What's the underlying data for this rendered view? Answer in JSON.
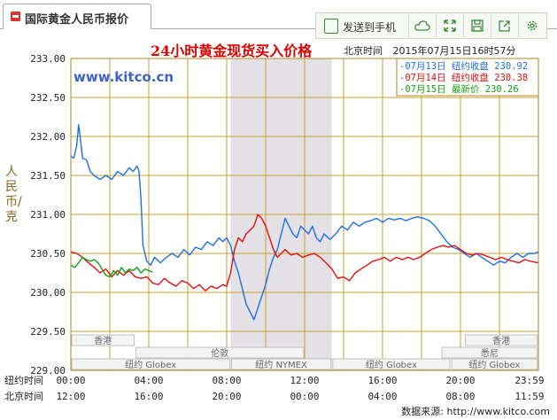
{
  "tab": {
    "title": "国际黄金人民币报价"
  },
  "toolbar": {
    "send_label": "发送到手机",
    "items": [
      "send-to-phone",
      "cloud",
      "expand",
      "save",
      "share",
      "settings"
    ]
  },
  "chart_data": {
    "type": "line",
    "title": "24小时黄金现货买入价格",
    "timezone_label": "北京时间",
    "datetime_label": "2015年07月15日16时57分",
    "watermark": "www.kitco.cn",
    "ylabel": "人民币/克",
    "ylim": [
      229.0,
      233.0
    ],
    "yticks": [
      "233.00",
      "232.50",
      "232.00",
      "231.50",
      "231.00",
      "230.50",
      "230.00",
      "229.50",
      "229.00"
    ],
    "x_row_labels": [
      "纽约时间",
      "北京时间"
    ],
    "xticks_ny": [
      "00:00",
      "04:00",
      "08:00",
      "12:00",
      "16:00",
      "20:00",
      "23:59"
    ],
    "xticks_bj": [
      "12:00",
      "16:00",
      "20:00",
      "00:00",
      "04:00",
      "08:00",
      "11:59"
    ],
    "legend": [
      {
        "date": "07月13日",
        "label": "纽约收盘",
        "value": "230.92",
        "color": "#1e6fe0"
      },
      {
        "date": "07月14日",
        "label": "纽约收盘",
        "value": "230.38",
        "color": "#e01010"
      },
      {
        "date": "07月15日",
        "label": "最新价",
        "value": "230.26",
        "color": "#10a010"
      }
    ],
    "sessions": [
      {
        "name": "香港",
        "row": 0,
        "start_h": 0,
        "end_h": 3.3
      },
      {
        "name": "香港",
        "row": 0,
        "start_h": 20.2,
        "end_h": 23.99
      },
      {
        "name": "伦敦",
        "row": 1,
        "start_h": 3.3,
        "end_h": 12
      },
      {
        "name": "悉尼",
        "row": 1,
        "start_h": 19,
        "end_h": 23.99
      },
      {
        "name": "纽约 Globex",
        "row": 2,
        "start_h": 0,
        "end_h": 8.2
      },
      {
        "name": "纽约 NYMEX",
        "row": 2,
        "start_h": 8.2,
        "end_h": 13.4
      },
      {
        "name": "纽约 Globex",
        "row": 2,
        "start_h": 13.4,
        "end_h": 19.5
      },
      {
        "name": "纽约 Globex",
        "row": 2,
        "start_h": 19.5,
        "end_h": 23.99
      }
    ],
    "shaded_range_h": [
      8.2,
      13.4
    ],
    "series": [
      {
        "name": "07月13日",
        "color": "#1e6fe0",
        "points": [
          [
            0,
            231.75
          ],
          [
            0.15,
            231.72
          ],
          [
            0.3,
            231.88
          ],
          [
            0.4,
            232.15
          ],
          [
            0.5,
            231.95
          ],
          [
            0.6,
            231.72
          ],
          [
            0.8,
            231.7
          ],
          [
            1.0,
            231.55
          ],
          [
            1.2,
            231.5
          ],
          [
            1.5,
            231.45
          ],
          [
            1.8,
            231.5
          ],
          [
            2.1,
            231.45
          ],
          [
            2.4,
            231.55
          ],
          [
            2.7,
            231.5
          ],
          [
            3.0,
            231.6
          ],
          [
            3.2,
            231.55
          ],
          [
            3.4,
            231.62
          ],
          [
            3.5,
            231.55
          ],
          [
            3.6,
            231.2
          ],
          [
            3.7,
            230.6
          ],
          [
            3.9,
            230.4
          ],
          [
            4.1,
            230.35
          ],
          [
            4.3,
            230.45
          ],
          [
            4.6,
            230.38
          ],
          [
            4.9,
            230.45
          ],
          [
            5.2,
            230.5
          ],
          [
            5.5,
            230.45
          ],
          [
            5.8,
            230.55
          ],
          [
            6.1,
            230.48
          ],
          [
            6.4,
            230.58
          ],
          [
            6.7,
            230.55
          ],
          [
            7.0,
            230.65
          ],
          [
            7.3,
            230.6
          ],
          [
            7.6,
            230.7
          ],
          [
            7.8,
            230.65
          ],
          [
            8.0,
            230.7
          ],
          [
            8.2,
            230.6
          ],
          [
            8.4,
            230.4
          ],
          [
            8.6,
            230.25
          ],
          [
            8.8,
            230.05
          ],
          [
            9.0,
            229.85
          ],
          [
            9.2,
            229.75
          ],
          [
            9.4,
            229.65
          ],
          [
            9.6,
            229.8
          ],
          [
            9.8,
            229.95
          ],
          [
            10.0,
            230.1
          ],
          [
            10.2,
            230.3
          ],
          [
            10.4,
            230.45
          ],
          [
            10.6,
            230.55
          ],
          [
            10.8,
            230.75
          ],
          [
            11.0,
            230.95
          ],
          [
            11.2,
            230.85
          ],
          [
            11.4,
            230.75
          ],
          [
            11.6,
            230.7
          ],
          [
            11.8,
            230.85
          ],
          [
            12.0,
            230.8
          ],
          [
            12.2,
            230.75
          ],
          [
            12.4,
            230.85
          ],
          [
            12.6,
            230.7
          ],
          [
            12.8,
            230.65
          ],
          [
            13.0,
            230.75
          ],
          [
            13.3,
            230.68
          ],
          [
            13.6,
            230.75
          ],
          [
            13.9,
            230.85
          ],
          [
            14.2,
            230.8
          ],
          [
            14.5,
            230.9
          ],
          [
            14.8,
            230.85
          ],
          [
            15.1,
            230.9
          ],
          [
            15.4,
            230.92
          ],
          [
            15.7,
            230.95
          ],
          [
            16.0,
            230.9
          ],
          [
            16.3,
            230.95
          ],
          [
            16.6,
            230.93
          ],
          [
            16.9,
            230.95
          ],
          [
            17.2,
            230.92
          ],
          [
            17.5,
            230.95
          ],
          [
            17.8,
            230.97
          ],
          [
            18.1,
            230.95
          ],
          [
            18.4,
            230.92
          ],
          [
            18.7,
            230.85
          ],
          [
            19.0,
            230.75
          ],
          [
            19.3,
            230.65
          ],
          [
            19.6,
            230.58
          ],
          [
            19.9,
            230.55
          ],
          [
            20.2,
            230.5
          ],
          [
            20.5,
            230.45
          ],
          [
            20.8,
            230.5
          ],
          [
            21.1,
            230.45
          ],
          [
            21.4,
            230.4
          ],
          [
            21.7,
            230.35
          ],
          [
            22.0,
            230.4
          ],
          [
            22.3,
            230.38
          ],
          [
            22.6,
            230.45
          ],
          [
            22.9,
            230.5
          ],
          [
            23.2,
            230.45
          ],
          [
            23.5,
            230.5
          ],
          [
            23.8,
            230.5
          ],
          [
            23.99,
            230.52
          ]
        ]
      },
      {
        "name": "07月14日",
        "color": "#e01010",
        "points": [
          [
            0,
            230.52
          ],
          [
            0.3,
            230.5
          ],
          [
            0.6,
            230.45
          ],
          [
            0.9,
            230.38
          ],
          [
            1.2,
            230.32
          ],
          [
            1.5,
            230.25
          ],
          [
            1.8,
            230.3
          ],
          [
            2.1,
            230.2
          ],
          [
            2.4,
            230.28
          ],
          [
            2.7,
            230.22
          ],
          [
            3.0,
            230.28
          ],
          [
            3.3,
            230.2
          ],
          [
            3.6,
            230.18
          ],
          [
            3.9,
            230.2
          ],
          [
            4.2,
            230.12
          ],
          [
            4.5,
            230.1
          ],
          [
            4.8,
            230.18
          ],
          [
            5.1,
            230.12
          ],
          [
            5.4,
            230.08
          ],
          [
            5.7,
            230.15
          ],
          [
            6.0,
            230.12
          ],
          [
            6.3,
            230.05
          ],
          [
            6.6,
            230.1
          ],
          [
            6.9,
            230.02
          ],
          [
            7.2,
            230.08
          ],
          [
            7.5,
            230.05
          ],
          [
            7.8,
            230.1
          ],
          [
            8.0,
            230.08
          ],
          [
            8.2,
            230.25
          ],
          [
            8.4,
            230.55
          ],
          [
            8.6,
            230.7
          ],
          [
            8.8,
            230.65
          ],
          [
            9.0,
            230.75
          ],
          [
            9.2,
            230.8
          ],
          [
            9.4,
            230.85
          ],
          [
            9.6,
            231.0
          ],
          [
            9.8,
            230.95
          ],
          [
            10.0,
            230.85
          ],
          [
            10.2,
            230.7
          ],
          [
            10.4,
            230.55
          ],
          [
            10.6,
            230.45
          ],
          [
            10.8,
            230.5
          ],
          [
            11.0,
            230.55
          ],
          [
            11.3,
            230.48
          ],
          [
            11.6,
            230.5
          ],
          [
            11.9,
            230.45
          ],
          [
            12.2,
            230.48
          ],
          [
            12.5,
            230.5
          ],
          [
            12.8,
            230.45
          ],
          [
            13.1,
            230.38
          ],
          [
            13.4,
            230.3
          ],
          [
            13.7,
            230.18
          ],
          [
            14.0,
            230.2
          ],
          [
            14.3,
            230.15
          ],
          [
            14.6,
            230.25
          ],
          [
            14.9,
            230.3
          ],
          [
            15.2,
            230.35
          ],
          [
            15.5,
            230.4
          ],
          [
            15.8,
            230.42
          ],
          [
            16.1,
            230.45
          ],
          [
            16.4,
            230.4
          ],
          [
            16.7,
            230.45
          ],
          [
            17.0,
            230.42
          ],
          [
            17.3,
            230.45
          ],
          [
            17.6,
            230.42
          ],
          [
            17.9,
            230.45
          ],
          [
            18.2,
            230.5
          ],
          [
            18.5,
            230.55
          ],
          [
            18.8,
            230.58
          ],
          [
            19.1,
            230.6
          ],
          [
            19.4,
            230.58
          ],
          [
            19.7,
            230.6
          ],
          [
            20.0,
            230.55
          ],
          [
            20.3,
            230.5
          ],
          [
            20.6,
            230.48
          ],
          [
            20.9,
            230.5
          ],
          [
            21.2,
            230.48
          ],
          [
            21.5,
            230.45
          ],
          [
            21.8,
            230.42
          ],
          [
            22.1,
            230.45
          ],
          [
            22.4,
            230.42
          ],
          [
            22.7,
            230.4
          ],
          [
            23.0,
            230.38
          ],
          [
            23.3,
            230.42
          ],
          [
            23.6,
            230.4
          ],
          [
            23.99,
            230.38
          ]
        ]
      },
      {
        "name": "07月15日",
        "color": "#10a010",
        "points": [
          [
            0,
            230.35
          ],
          [
            0.2,
            230.32
          ],
          [
            0.4,
            230.38
          ],
          [
            0.6,
            230.45
          ],
          [
            0.8,
            230.42
          ],
          [
            1.0,
            230.4
          ],
          [
            1.2,
            230.42
          ],
          [
            1.4,
            230.38
          ],
          [
            1.6,
            230.3
          ],
          [
            1.8,
            230.22
          ],
          [
            2.0,
            230.2
          ],
          [
            2.2,
            230.28
          ],
          [
            2.4,
            230.22
          ],
          [
            2.6,
            230.32
          ],
          [
            2.8,
            230.25
          ],
          [
            3.0,
            230.3
          ],
          [
            3.2,
            230.28
          ],
          [
            3.4,
            230.32
          ],
          [
            3.6,
            230.25
          ],
          [
            3.8,
            230.3
          ],
          [
            4.0,
            230.28
          ],
          [
            4.2,
            230.26
          ]
        ]
      }
    ]
  },
  "footer": {
    "source": "数据来源: http://www.kitco.com"
  }
}
